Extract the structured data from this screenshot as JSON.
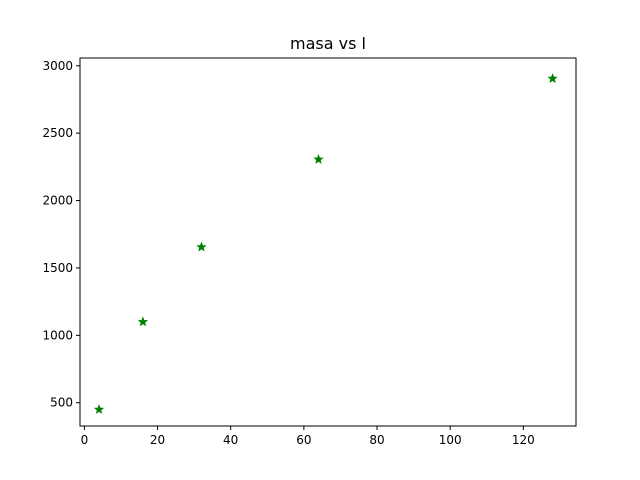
{
  "chart_data": {
    "type": "scatter",
    "title": "masa vs l",
    "xlabel": "",
    "ylabel": "",
    "xlim": [
      -1.2,
      134.4
    ],
    "ylim": [
      327.5,
      3057.5
    ],
    "xticks": [
      0,
      20,
      40,
      60,
      80,
      100,
      120
    ],
    "yticks": [
      500,
      1000,
      1500,
      2000,
      2500,
      3000
    ],
    "marker": "star",
    "color": "#008000",
    "grid": false,
    "series": [
      {
        "x": [
          4,
          16,
          32,
          64,
          128
        ],
        "y": [
          450,
          1100,
          1655,
          2305,
          2905
        ]
      }
    ]
  }
}
